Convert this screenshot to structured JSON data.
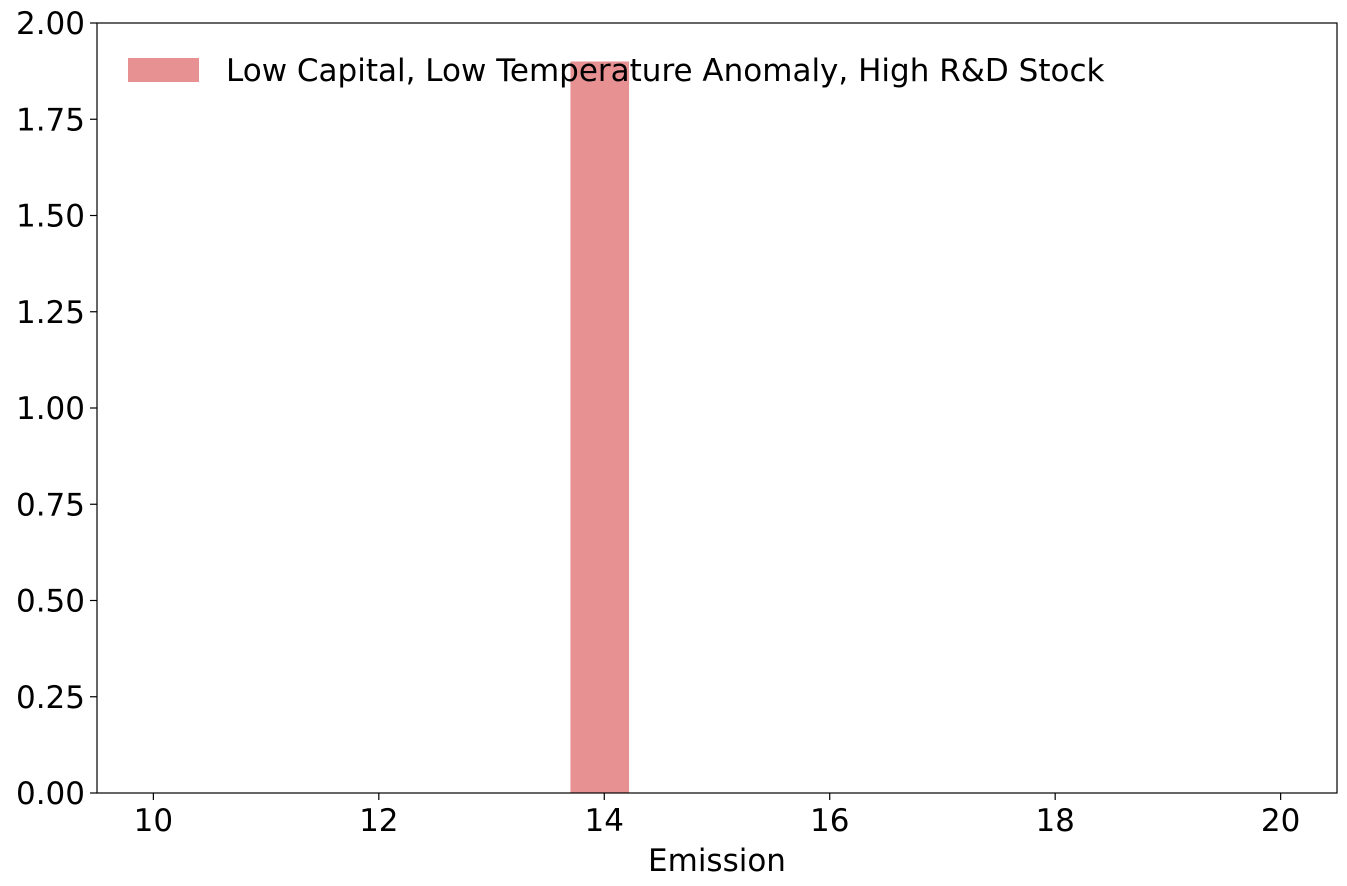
{
  "chart_data": {
    "type": "bar",
    "title": "",
    "xlabel": "Emission",
    "ylabel": "",
    "xlim": [
      9.5,
      20.5
    ],
    "ylim": [
      0,
      2.0
    ],
    "xticks": [
      10,
      12,
      14,
      16,
      18,
      20
    ],
    "xtick_labels": [
      "10",
      "12",
      "14",
      "16",
      "18",
      "20"
    ],
    "yticks": [
      0,
      0.25,
      0.5,
      0.75,
      1.0,
      1.25,
      1.5,
      1.75,
      2.0
    ],
    "ytick_labels": [
      "0.00",
      "0.25",
      "0.50",
      "0.75",
      "1.00",
      "1.25",
      "1.50",
      "1.75",
      "2.00"
    ],
    "grid": false,
    "legend_position": "top-left",
    "series": [
      {
        "name": "Low Capital, Low Temperature Anomaly, High R&D Stock",
        "color": "#e89193",
        "bars": [
          {
            "x_start": 13.7,
            "x_end": 14.22,
            "value": 1.9
          }
        ]
      }
    ]
  }
}
